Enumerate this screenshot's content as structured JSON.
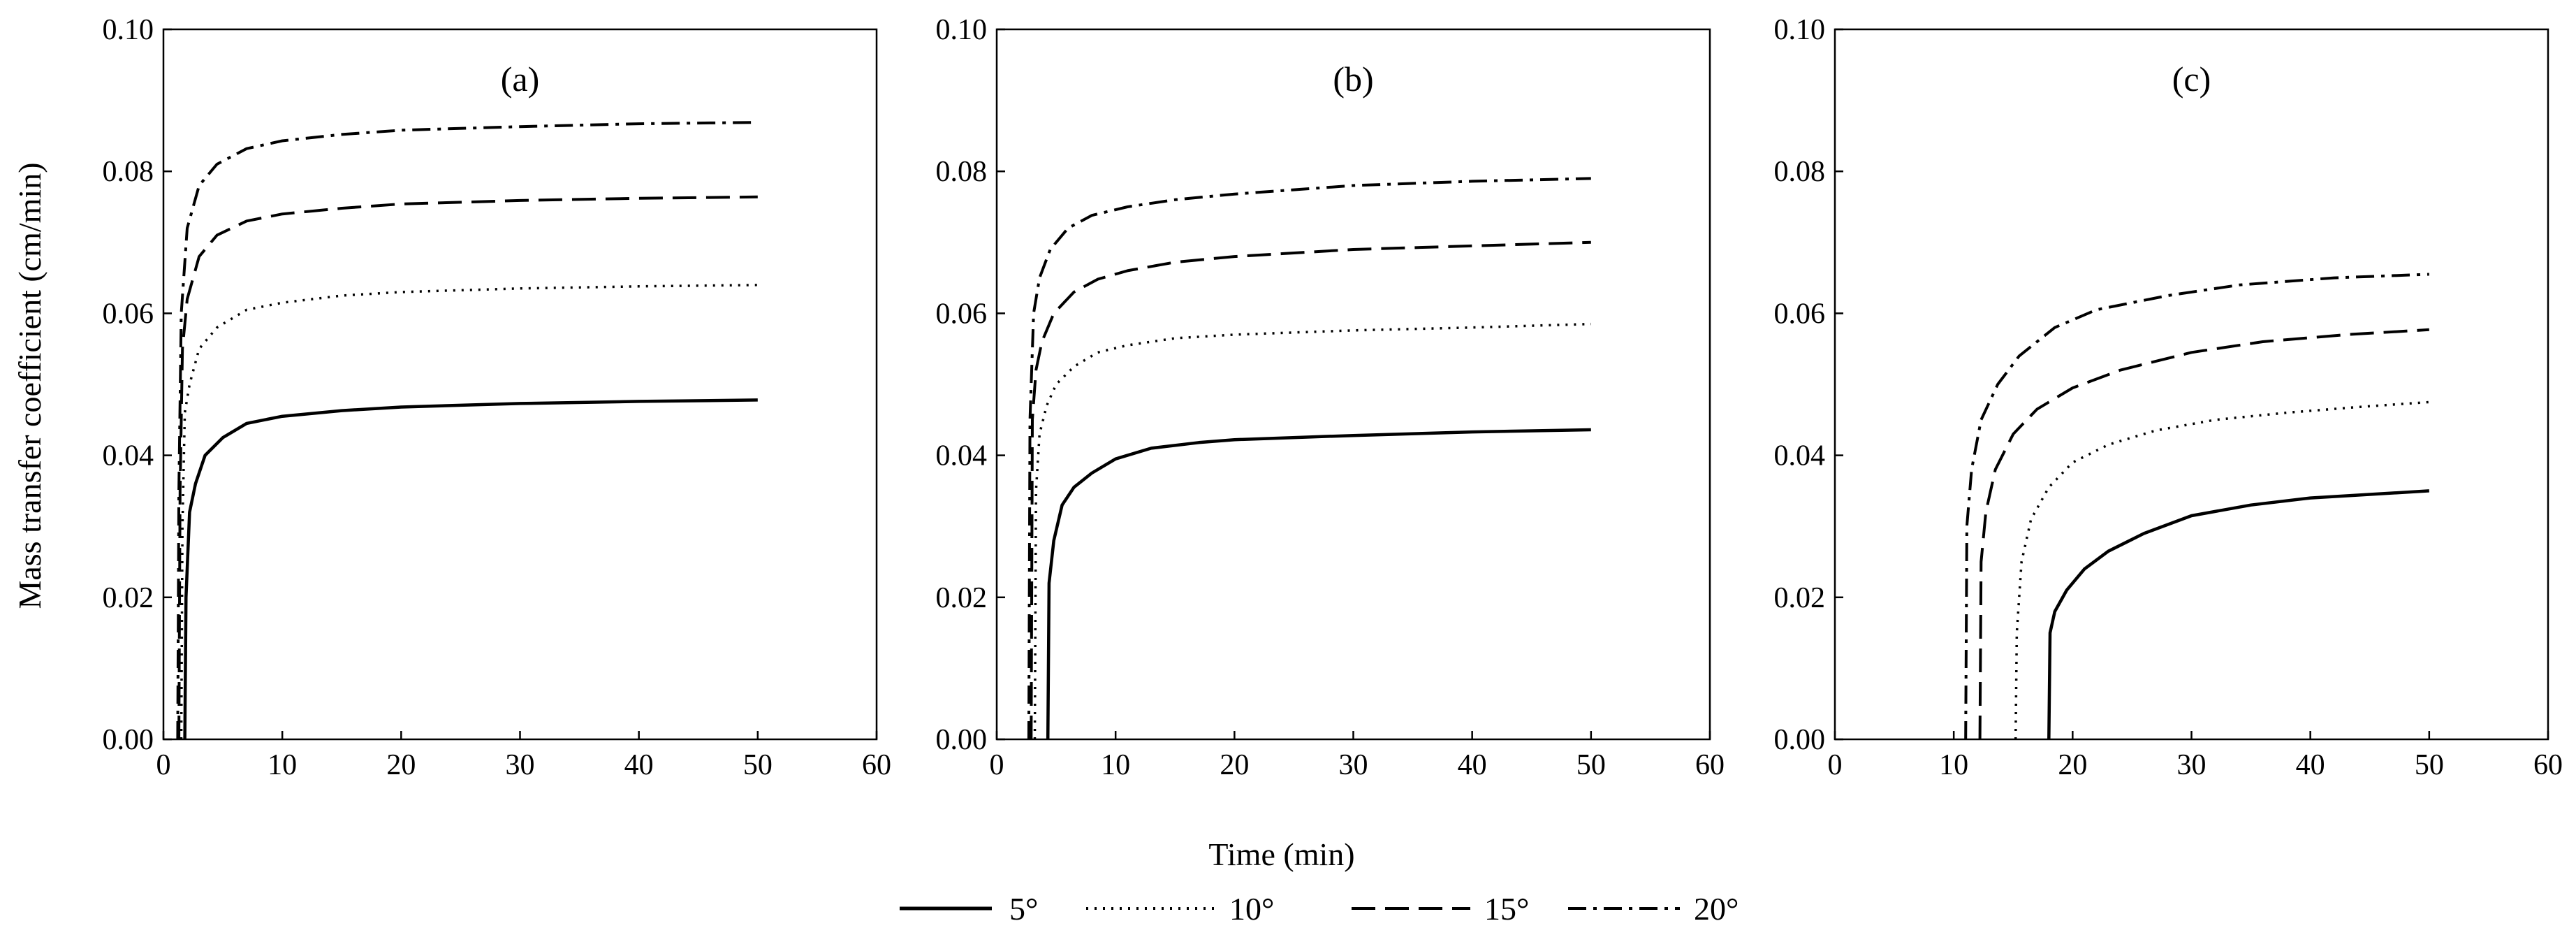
{
  "figure": {
    "ylabel": "Mass transfer coefficient (cm/min)",
    "xlabel": "Time (min)"
  },
  "legend": [
    {
      "label": "5°",
      "dash": "solid"
    },
    {
      "label": "10°",
      "dash": "dotted"
    },
    {
      "label": "15°",
      "dash": "dashed"
    },
    {
      "label": "20°",
      "dash": "dashdot"
    }
  ],
  "chart_data": [
    {
      "type": "line",
      "title": "(a)",
      "xlim": [
        0,
        60
      ],
      "ylim": [
        0,
        0.1
      ],
      "xticks": [
        "0",
        "10",
        "20",
        "30",
        "40",
        "50",
        "60"
      ],
      "yticks": [
        "0.00",
        "0.02",
        "0.04",
        "0.06",
        "0.08",
        "0.10"
      ],
      "series": [
        {
          "name": "5°",
          "x": [
            1.8,
            1.9,
            2.2,
            2.7,
            3.5,
            5,
            7,
            10,
            15,
            20,
            30,
            40,
            50
          ],
          "y": [
            0,
            0.02,
            0.032,
            0.036,
            0.04,
            0.0425,
            0.0445,
            0.0455,
            0.0463,
            0.0468,
            0.0473,
            0.0476,
            0.0478
          ]
        },
        {
          "name": "10°",
          "x": [
            1.5,
            1.6,
            1.8,
            2.2,
            3,
            4.5,
            7,
            10,
            15,
            20,
            30,
            40,
            50
          ],
          "y": [
            0,
            0.03,
            0.046,
            0.05,
            0.055,
            0.058,
            0.0605,
            0.0615,
            0.0625,
            0.063,
            0.0635,
            0.0638,
            0.064
          ]
        },
        {
          "name": "15°",
          "x": [
            1.3,
            1.4,
            1.6,
            2,
            3,
            4.5,
            7,
            10,
            15,
            20,
            30,
            40,
            50
          ],
          "y": [
            0,
            0.035,
            0.055,
            0.062,
            0.068,
            0.071,
            0.073,
            0.074,
            0.0748,
            0.0754,
            0.0759,
            0.0762,
            0.0764
          ]
        },
        {
          "name": "20°",
          "x": [
            1.2,
            1.3,
            1.5,
            2,
            3,
            4.5,
            7,
            10,
            15,
            20,
            30,
            40,
            50
          ],
          "y": [
            0,
            0.035,
            0.06,
            0.072,
            0.078,
            0.081,
            0.0832,
            0.0843,
            0.0852,
            0.0858,
            0.0863,
            0.0867,
            0.0869
          ]
        }
      ]
    },
    {
      "type": "line",
      "title": "(b)",
      "xlim": [
        0,
        60
      ],
      "ylim": [
        0,
        0.1
      ],
      "xticks": [
        "0",
        "10",
        "20",
        "30",
        "40",
        "50",
        "60"
      ],
      "yticks": [
        "0.00",
        "0.02",
        "0.04",
        "0.06",
        "0.08",
        "0.10"
      ],
      "series": [
        {
          "name": "5°",
          "x": [
            4.3,
            4.4,
            4.8,
            5.5,
            6.5,
            8,
            10,
            13,
            17,
            20,
            30,
            40,
            50
          ],
          "y": [
            0,
            0.022,
            0.028,
            0.033,
            0.0355,
            0.0375,
            0.0395,
            0.041,
            0.0418,
            0.0422,
            0.0428,
            0.0433,
            0.0436
          ]
        },
        {
          "name": "10°",
          "x": [
            3.2,
            3.3,
            3.6,
            4.2,
            5,
            6.5,
            8.5,
            11,
            15,
            20,
            30,
            40,
            50
          ],
          "y": [
            0,
            0.035,
            0.043,
            0.047,
            0.05,
            0.0525,
            0.0545,
            0.0555,
            0.0565,
            0.057,
            0.0576,
            0.058,
            0.0585
          ]
        },
        {
          "name": "15°",
          "x": [
            2.9,
            3,
            3.3,
            3.8,
            4.8,
            6.5,
            8.5,
            11,
            15,
            20,
            30,
            40,
            50
          ],
          "y": [
            0,
            0.045,
            0.052,
            0.056,
            0.06,
            0.063,
            0.0648,
            0.066,
            0.0672,
            0.068,
            0.069,
            0.0695,
            0.07
          ]
        },
        {
          "name": "20°",
          "x": [
            2.7,
            2.8,
            3.1,
            3.6,
            4.5,
            6,
            8,
            11,
            15,
            20,
            30,
            40,
            50
          ],
          "y": [
            0,
            0.045,
            0.06,
            0.065,
            0.069,
            0.072,
            0.0738,
            0.075,
            0.076,
            0.0768,
            0.078,
            0.0786,
            0.079
          ]
        }
      ]
    },
    {
      "type": "line",
      "title": "(c)",
      "xlim": [
        0,
        60
      ],
      "ylim": [
        0,
        0.1
      ],
      "xticks": [
        "0",
        "10",
        "20",
        "30",
        "40",
        "50",
        "60"
      ],
      "yticks": [
        "0.00",
        "0.02",
        "0.04",
        "0.06",
        "0.08",
        "0.10"
      ],
      "series": [
        {
          "name": "5°",
          "x": [
            18,
            18.1,
            18.5,
            19.5,
            21,
            23,
            26,
            30,
            35,
            40,
            45,
            50
          ],
          "y": [
            0,
            0.015,
            0.018,
            0.021,
            0.024,
            0.0265,
            0.029,
            0.0315,
            0.033,
            0.034,
            0.0345,
            0.035
          ]
        },
        {
          "name": "10°",
          "x": [
            15.2,
            15.3,
            15.7,
            16.5,
            18,
            20,
            23,
            27,
            32,
            38,
            44,
            50
          ],
          "y": [
            0,
            0.015,
            0.025,
            0.031,
            0.0355,
            0.039,
            0.0415,
            0.0435,
            0.045,
            0.046,
            0.0468,
            0.0475
          ]
        },
        {
          "name": "15°",
          "x": [
            12.2,
            12.3,
            12.7,
            13.5,
            15,
            17,
            20,
            24,
            30,
            36,
            43,
            50
          ],
          "y": [
            0,
            0.025,
            0.032,
            0.038,
            0.043,
            0.0465,
            0.0495,
            0.052,
            0.0545,
            0.056,
            0.057,
            0.0577
          ]
        },
        {
          "name": "20°",
          "x": [
            11,
            11.1,
            11.5,
            12.3,
            13.7,
            15.5,
            18.5,
            22,
            28,
            34,
            42,
            50
          ],
          "y": [
            0,
            0.03,
            0.038,
            0.045,
            0.05,
            0.054,
            0.058,
            0.0605,
            0.0625,
            0.064,
            0.065,
            0.0655
          ]
        }
      ]
    }
  ]
}
